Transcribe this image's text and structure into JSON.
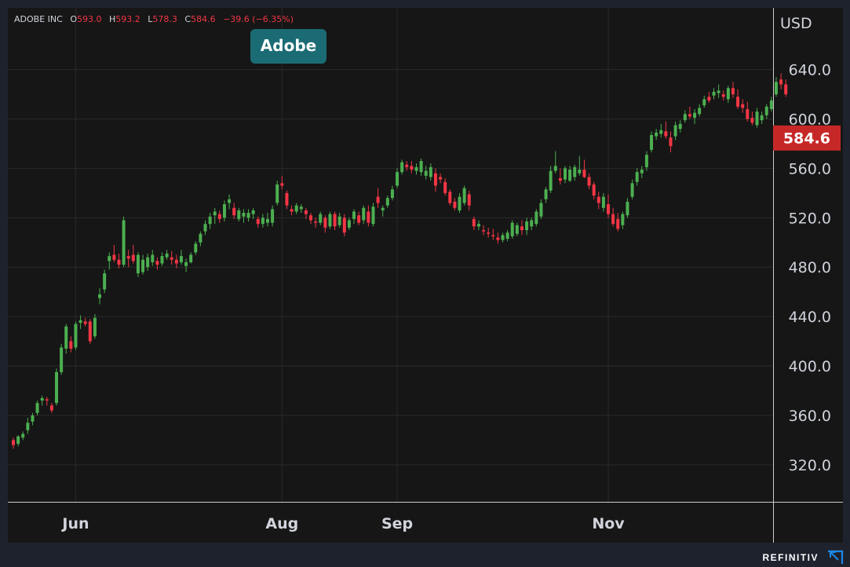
{
  "header": {
    "symbol": "ADOBE INC",
    "o_label": "O",
    "o_value": "593.0",
    "h_label": "H",
    "h_value": "593.2",
    "l_label": "L",
    "l_value": "578.3",
    "c_label": "C",
    "c_value": "584.6",
    "change": "−39.6 (−6.35%)"
  },
  "chart_label": "Adobe",
  "currency": "USD",
  "last_price_label": "584.6",
  "brand": "REFINITIV",
  "colors": {
    "up": "#4caf50",
    "down": "#f23645",
    "background": "#161616",
    "grid": "#2a2a2a",
    "price_tag": "#c62828"
  },
  "chart_data": {
    "type": "candlestick",
    "title": "Adobe",
    "ylabel": "USD",
    "ylim": [
      290,
      690
    ],
    "y_ticks": [
      "320.0",
      "360.0",
      "400.0",
      "440.0",
      "480.0",
      "520.0",
      "560.0",
      "600.0",
      "640.0"
    ],
    "x_ticks": [
      {
        "label": "Jun",
        "index": 13
      },
      {
        "label": "Aug",
        "index": 56
      },
      {
        "label": "Sep",
        "index": 80
      },
      {
        "label": "Nov",
        "index": 124
      }
    ],
    "last_price": 584.6,
    "candles": [
      [
        340,
        342,
        333,
        336
      ],
      [
        337,
        344,
        335,
        343
      ],
      [
        342,
        347,
        340,
        345
      ],
      [
        348,
        358,
        345,
        354
      ],
      [
        355,
        362,
        352,
        360
      ],
      [
        362,
        372,
        360,
        370
      ],
      [
        372,
        376,
        368,
        374
      ],
      [
        373,
        375,
        368,
        372
      ],
      [
        368,
        370,
        362,
        364
      ],
      [
        370,
        398,
        368,
        395
      ],
      [
        395,
        418,
        393,
        415
      ],
      [
        414,
        434,
        410,
        432
      ],
      [
        420,
        424,
        411,
        414
      ],
      [
        415,
        436,
        413,
        434
      ],
      [
        435,
        441,
        430,
        437
      ],
      [
        436,
        439,
        432,
        434
      ],
      [
        436,
        438,
        418,
        420
      ],
      [
        424,
        442,
        422,
        439
      ],
      [
        455,
        463,
        450,
        458
      ],
      [
        462,
        478,
        459,
        475
      ],
      [
        485,
        492,
        478,
        489
      ],
      [
        490,
        498,
        484,
        486
      ],
      [
        486,
        491,
        479,
        482
      ],
      [
        482,
        521,
        480,
        518
      ],
      [
        489,
        494,
        480,
        487
      ],
      [
        490,
        498,
        483,
        485
      ],
      [
        475,
        492,
        472,
        490
      ],
      [
        476,
        490,
        474,
        486
      ],
      [
        480,
        491,
        477,
        488
      ],
      [
        484,
        494,
        481,
        490
      ],
      [
        485,
        488,
        478,
        482
      ],
      [
        483,
        492,
        481,
        489
      ],
      [
        488,
        494,
        486,
        491
      ],
      [
        488,
        493,
        482,
        486
      ],
      [
        486,
        490,
        479,
        483
      ],
      [
        484,
        494,
        482,
        489
      ],
      [
        481,
        487,
        476,
        484
      ],
      [
        484,
        492,
        483,
        490
      ],
      [
        492,
        501,
        490,
        499
      ],
      [
        500,
        509,
        497,
        507
      ],
      [
        509,
        518,
        506,
        515
      ],
      [
        515,
        524,
        511,
        521
      ],
      [
        522,
        528,
        515,
        525
      ],
      [
        523,
        526,
        516,
        519
      ],
      [
        520,
        534,
        517,
        531
      ],
      [
        532,
        539,
        527,
        535
      ],
      [
        528,
        532,
        519,
        522
      ],
      [
        519,
        528,
        517,
        526
      ],
      [
        521,
        527,
        516,
        524
      ],
      [
        520,
        527,
        517,
        524
      ],
      [
        523,
        528,
        519,
        526
      ],
      [
        519,
        521,
        512,
        515
      ],
      [
        515,
        523,
        512,
        520
      ],
      [
        516,
        524,
        513,
        519
      ],
      [
        516,
        530,
        513,
        527
      ],
      [
        532,
        550,
        530,
        547
      ],
      [
        548,
        554,
        543,
        546
      ],
      [
        540,
        542,
        527,
        530
      ],
      [
        527,
        530,
        522,
        525
      ],
      [
        525,
        532,
        523,
        530
      ],
      [
        527,
        531,
        524,
        529
      ],
      [
        526,
        528,
        519,
        523
      ],
      [
        522,
        524,
        515,
        518
      ],
      [
        517,
        520,
        512,
        516
      ],
      [
        516,
        525,
        514,
        523
      ],
      [
        520,
        522,
        508,
        512
      ],
      [
        513,
        525,
        511,
        523
      ],
      [
        523,
        525,
        510,
        513
      ],
      [
        514,
        524,
        512,
        521
      ],
      [
        520,
        523,
        505,
        508
      ],
      [
        512,
        520,
        510,
        518
      ],
      [
        519,
        527,
        515,
        525
      ],
      [
        522,
        525,
        514,
        516
      ],
      [
        518,
        530,
        515,
        528
      ],
      [
        525,
        530,
        513,
        516
      ],
      [
        515,
        532,
        513,
        529
      ],
      [
        537,
        544,
        528,
        532
      ],
      [
        526,
        530,
        521,
        528
      ],
      [
        530,
        538,
        528,
        536
      ],
      [
        536,
        546,
        534,
        543
      ],
      [
        546,
        560,
        544,
        557
      ],
      [
        557,
        567,
        555,
        565
      ],
      [
        563,
        566,
        558,
        561
      ],
      [
        562,
        566,
        556,
        559
      ],
      [
        558,
        564,
        555,
        561
      ],
      [
        557,
        568,
        554,
        566
      ],
      [
        554,
        562,
        551,
        558
      ],
      [
        553,
        564,
        550,
        561
      ],
      [
        556,
        560,
        541,
        546
      ],
      [
        553,
        556,
        548,
        551
      ],
      [
        549,
        552,
        538,
        540
      ],
      [
        541,
        543,
        530,
        532
      ],
      [
        533,
        536,
        526,
        528
      ],
      [
        526,
        540,
        524,
        537
      ],
      [
        532,
        546,
        530,
        544
      ],
      [
        539,
        542,
        526,
        530
      ],
      [
        519,
        521,
        510,
        513
      ],
      [
        513,
        518,
        510,
        515
      ],
      [
        510,
        514,
        506,
        509
      ],
      [
        508,
        512,
        504,
        507
      ],
      [
        506,
        511,
        502,
        505
      ],
      [
        504,
        508,
        499,
        502
      ],
      [
        502,
        508,
        500,
        506
      ],
      [
        503,
        510,
        501,
        508
      ],
      [
        505,
        518,
        503,
        516
      ],
      [
        507,
        516,
        505,
        514
      ],
      [
        513,
        518,
        506,
        510
      ],
      [
        510,
        520,
        506,
        517
      ],
      [
        513,
        520,
        510,
        518
      ],
      [
        515,
        527,
        513,
        525
      ],
      [
        521,
        535,
        519,
        532
      ],
      [
        535,
        545,
        532,
        543
      ],
      [
        542,
        562,
        540,
        558
      ],
      [
        558,
        574,
        556,
        562
      ],
      [
        552,
        560,
        547,
        550
      ],
      [
        551,
        562,
        548,
        560
      ],
      [
        550,
        562,
        549,
        559
      ],
      [
        553,
        563,
        550,
        561
      ],
      [
        556,
        570,
        554,
        559
      ],
      [
        559,
        567,
        552,
        553
      ],
      [
        553,
        556,
        543,
        546
      ],
      [
        547,
        549,
        535,
        538
      ],
      [
        537,
        541,
        527,
        532
      ],
      [
        528,
        540,
        525,
        537
      ],
      [
        531,
        539,
        520,
        523
      ],
      [
        523,
        528,
        513,
        515
      ],
      [
        519,
        524,
        509,
        511
      ],
      [
        514,
        525,
        511,
        523
      ],
      [
        522,
        536,
        520,
        533
      ],
      [
        537,
        551,
        535,
        548
      ],
      [
        549,
        560,
        546,
        557
      ],
      [
        556,
        562,
        552,
        559
      ],
      [
        561,
        574,
        558,
        571
      ],
      [
        575,
        590,
        573,
        587
      ],
      [
        586,
        592,
        583,
        589
      ],
      [
        588,
        596,
        585,
        591
      ],
      [
        590,
        598,
        584,
        586
      ],
      [
        585,
        590,
        573,
        578
      ],
      [
        586,
        598,
        583,
        595
      ],
      [
        592,
        599,
        589,
        596
      ],
      [
        599,
        607,
        597,
        604
      ],
      [
        604,
        610,
        600,
        602
      ],
      [
        601,
        608,
        596,
        605
      ],
      [
        604,
        612,
        602,
        609
      ],
      [
        611,
        619,
        609,
        616
      ],
      [
        618,
        622,
        613,
        615
      ],
      [
        619,
        625,
        616,
        622
      ],
      [
        621,
        628,
        617,
        623
      ],
      [
        620,
        623,
        615,
        618
      ],
      [
        616,
        627,
        613,
        625
      ],
      [
        625,
        630,
        617,
        620
      ],
      [
        618,
        624,
        608,
        610
      ],
      [
        612,
        616,
        605,
        609
      ],
      [
        608,
        614,
        598,
        600
      ],
      [
        601,
        606,
        595,
        597
      ],
      [
        595,
        609,
        593,
        606
      ],
      [
        599,
        606,
        596,
        603
      ],
      [
        603,
        612,
        600,
        610
      ],
      [
        608,
        618,
        606,
        615
      ],
      [
        620,
        634,
        618,
        630
      ],
      [
        632,
        637,
        624,
        628
      ],
      [
        628,
        632,
        618,
        620
      ],
      null,
      [
        593,
        593.2,
        578.3,
        584.6
      ]
    ]
  }
}
